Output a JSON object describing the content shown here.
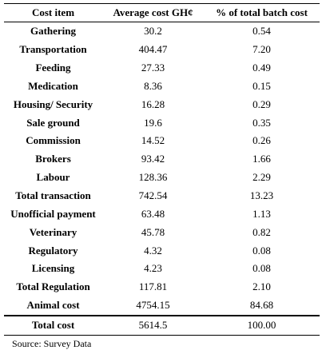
{
  "table": {
    "headers": [
      "Cost item",
      "Average cost GH¢",
      "% of total batch cost"
    ],
    "rows": [
      [
        "Gathering",
        "30.2",
        "0.54"
      ],
      [
        "Transportation",
        "404.47",
        "7.20"
      ],
      [
        "Feeding",
        "27.33",
        "0.49"
      ],
      [
        "Medication",
        "8.36",
        "0.15"
      ],
      [
        "Housing/ Security",
        "16.28",
        "0.29"
      ],
      [
        "Sale ground",
        "19.6",
        "0.35"
      ],
      [
        "Commission",
        "14.52",
        "0.26"
      ],
      [
        "Brokers",
        "93.42",
        "1.66"
      ],
      [
        "Labour",
        "128.36",
        "2.29"
      ],
      [
        "Total transaction",
        "742.54",
        "13.23"
      ],
      [
        "Unofficial payment",
        "63.48",
        "1.13"
      ],
      [
        "Veterinary",
        "45.78",
        "0.82"
      ],
      [
        "Regulatory",
        "4.32",
        "0.08"
      ],
      [
        "Licensing",
        "4.23",
        "0.08"
      ],
      [
        "Total Regulation",
        "117.81",
        "2.10"
      ],
      [
        "Animal cost",
        "4754.15",
        "84.68"
      ]
    ],
    "total_row": [
      "Total cost",
      "5614.5",
      "100.00"
    ]
  },
  "source": "Source: Survey Data"
}
